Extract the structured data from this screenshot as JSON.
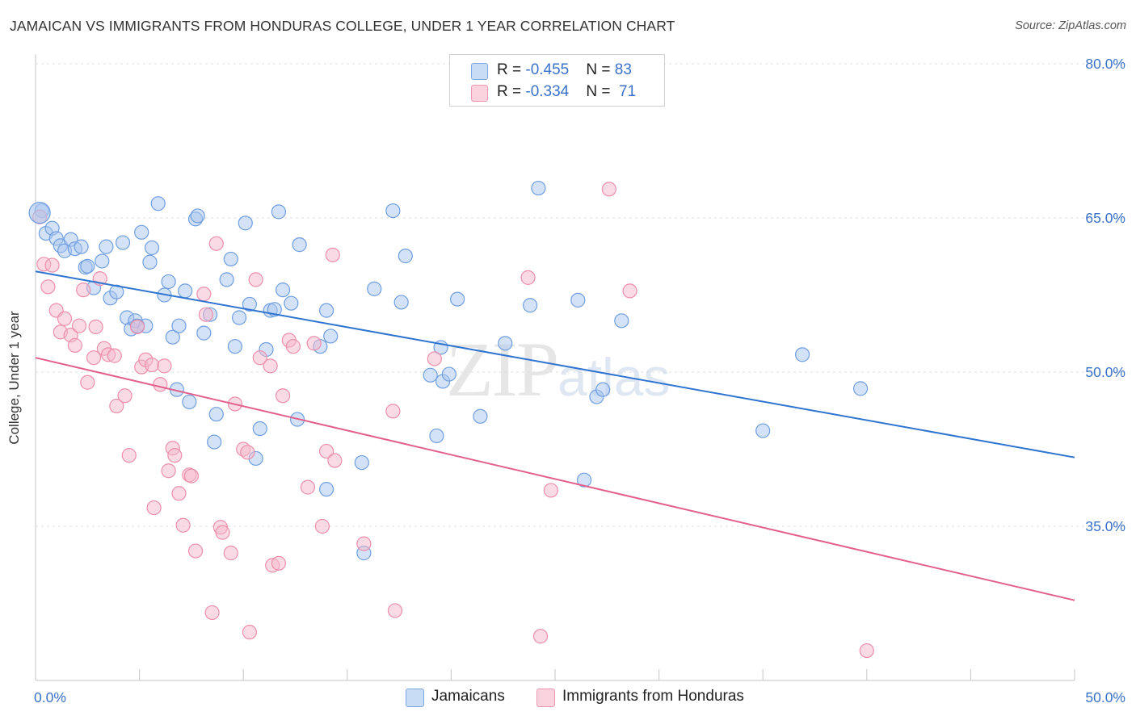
{
  "header": {
    "title": "JAMAICAN VS IMMIGRANTS FROM HONDURAS COLLEGE, UNDER 1 YEAR CORRELATION CHART",
    "source": "Source: ZipAtlas.com"
  },
  "watermark": {
    "zip": "ZIP",
    "atlas": "atlas"
  },
  "legend": {
    "rows": [
      {
        "r_label": "R = ",
        "r_value": "-0.455",
        "n_label": "N = ",
        "n_value": "83",
        "color": "#a9c6ef"
      },
      {
        "r_label": "R = ",
        "r_value": "-0.334",
        "n_label": "N = ",
        "n_value": "71",
        "color": "#f5b8cb"
      }
    ]
  },
  "bottom_legend": [
    {
      "label": "Jamaicans",
      "color": "#a9c6ef"
    },
    {
      "label": "Immigrants from Honduras",
      "color": "#f5b8cb"
    }
  ],
  "chart_data": {
    "type": "scatter",
    "title": "JAMAICAN VS IMMIGRANTS FROM HONDURAS COLLEGE, UNDER 1 YEAR CORRELATION CHART",
    "xlabel": "",
    "ylabel": "College, Under 1 year",
    "xlim": [
      0,
      50
    ],
    "ylim": [
      20,
      83
    ],
    "x_tick_labels": [
      "0.0%",
      "50.0%"
    ],
    "y_ticks": [
      35,
      50,
      65,
      80
    ],
    "y_tick_labels": [
      "35.0%",
      "50.0%",
      "65.0%",
      "80.0%"
    ],
    "grid": true,
    "legend_position": "top-center",
    "series": [
      {
        "name": "Jamaicans",
        "color": "#6f9fe0",
        "fill": "#a9c6ef",
        "trend": {
          "x": [
            0,
            50
          ],
          "y": [
            59.8,
            41.7
          ],
          "color": "#2f74d0"
        },
        "points": [
          [
            0.3,
            65.7
          ],
          [
            0.5,
            63.5
          ],
          [
            0.8,
            64
          ],
          [
            1,
            63
          ],
          [
            1.2,
            62.3
          ],
          [
            1.4,
            61.8
          ],
          [
            1.7,
            62.9
          ],
          [
            1.9,
            62
          ],
          [
            2.2,
            62.2
          ],
          [
            2.4,
            60.2
          ],
          [
            2.5,
            60.3
          ],
          [
            2.8,
            58.2
          ],
          [
            3.2,
            60.8
          ],
          [
            3.4,
            62.2
          ],
          [
            3.6,
            57.2
          ],
          [
            3.9,
            57.8
          ],
          [
            4.2,
            62.6
          ],
          [
            4.4,
            55.3
          ],
          [
            4.6,
            54.2
          ],
          [
            4.8,
            55
          ],
          [
            5.1,
            63.6
          ],
          [
            5.3,
            54.5
          ],
          [
            5.5,
            60.7
          ],
          [
            5.6,
            62.1
          ],
          [
            5.9,
            66.4
          ],
          [
            6.2,
            57.5
          ],
          [
            6.4,
            58.8
          ],
          [
            6.6,
            53.4
          ],
          [
            6.9,
            54.5
          ],
          [
            6.8,
            48.3
          ],
          [
            7.2,
            57.9
          ],
          [
            7.4,
            47.1
          ],
          [
            7.7,
            64.9
          ],
          [
            7.8,
            65.2
          ],
          [
            8.1,
            53.8
          ],
          [
            8.4,
            55.6
          ],
          [
            8.6,
            43.2
          ],
          [
            8.7,
            45.9
          ],
          [
            9.2,
            59
          ],
          [
            9.4,
            61
          ],
          [
            9.6,
            52.5
          ],
          [
            9.8,
            55.3
          ],
          [
            10.1,
            64.5
          ],
          [
            10.3,
            56.6
          ],
          [
            10.6,
            41.6
          ],
          [
            10.8,
            44.5
          ],
          [
            11.1,
            52.2
          ],
          [
            11.3,
            56
          ],
          [
            11.5,
            56.1
          ],
          [
            11.7,
            65.6
          ],
          [
            11.9,
            58
          ],
          [
            12.3,
            56.7
          ],
          [
            12.6,
            45.4
          ],
          [
            12.7,
            62.4
          ],
          [
            13.7,
            52.5
          ],
          [
            14,
            38.6
          ],
          [
            14.2,
            53.5
          ],
          [
            14,
            56
          ],
          [
            15.7,
            41.2
          ],
          [
            15.8,
            32.4
          ],
          [
            16.3,
            58.1
          ],
          [
            17.2,
            65.7
          ],
          [
            17.6,
            56.8
          ],
          [
            17.8,
            61.3
          ],
          [
            19,
            49.7
          ],
          [
            19.3,
            43.8
          ],
          [
            19.5,
            52.4
          ],
          [
            19.6,
            49.1
          ],
          [
            19.9,
            49.8
          ],
          [
            20.3,
            57.1
          ],
          [
            21.4,
            45.7
          ],
          [
            22.6,
            52.8
          ],
          [
            23.8,
            56.5
          ],
          [
            24.2,
            67.9
          ],
          [
            26.1,
            57
          ],
          [
            26.4,
            39.5
          ],
          [
            27,
            47.6
          ],
          [
            27.3,
            48.3
          ],
          [
            28.2,
            55
          ],
          [
            36.9,
            51.7
          ],
          [
            35,
            44.3
          ],
          [
            39.7,
            48.4
          ],
          [
            4.9,
            54.5
          ]
        ]
      },
      {
        "name": "Immigrants from Honduras",
        "color": "#ec8fab",
        "fill": "#f5b8cb",
        "trend": {
          "x": [
            0,
            50
          ],
          "y": [
            51.4,
            27.8
          ],
          "color": "#e2608b"
        },
        "points": [
          [
            0.2,
            65.1
          ],
          [
            0.4,
            60.5
          ],
          [
            0.6,
            58.3
          ],
          [
            0.8,
            60.4
          ],
          [
            1,
            56
          ],
          [
            1.2,
            53.9
          ],
          [
            1.4,
            55.2
          ],
          [
            1.7,
            53.6
          ],
          [
            1.9,
            52.6
          ],
          [
            2.1,
            54.5
          ],
          [
            2.3,
            58
          ],
          [
            2.5,
            49
          ],
          [
            2.8,
            51.4
          ],
          [
            2.9,
            54.4
          ],
          [
            3.1,
            59.1
          ],
          [
            3.3,
            52.3
          ],
          [
            3.5,
            51.7
          ],
          [
            3.8,
            51.6
          ],
          [
            3.9,
            46.7
          ],
          [
            4.3,
            47.7
          ],
          [
            4.5,
            41.9
          ],
          [
            4.9,
            54.4
          ],
          [
            5.1,
            50.5
          ],
          [
            5.3,
            51.2
          ],
          [
            5.6,
            50.7
          ],
          [
            5.7,
            36.8
          ],
          [
            6.2,
            50.6
          ],
          [
            6,
            48.8
          ],
          [
            6.4,
            40.4
          ],
          [
            6.6,
            42.6
          ],
          [
            6.7,
            41.9
          ],
          [
            6.9,
            38.2
          ],
          [
            7.1,
            35.1
          ],
          [
            7.4,
            40
          ],
          [
            7.5,
            39.9
          ],
          [
            7.7,
            32.6
          ],
          [
            8.1,
            57.6
          ],
          [
            8.2,
            55.6
          ],
          [
            8.5,
            26.6
          ],
          [
            8.7,
            62.5
          ],
          [
            8.9,
            34.9
          ],
          [
            9,
            34.4
          ],
          [
            9.4,
            32.4
          ],
          [
            9.6,
            46.9
          ],
          [
            10,
            42.5
          ],
          [
            10.2,
            42.2
          ],
          [
            10.3,
            24.7
          ],
          [
            10.6,
            59
          ],
          [
            10.8,
            51.4
          ],
          [
            11.3,
            50.6
          ],
          [
            11.4,
            31.2
          ],
          [
            11.7,
            31.4
          ],
          [
            11.9,
            47.7
          ],
          [
            12.2,
            53.1
          ],
          [
            12.4,
            52.5
          ],
          [
            13.1,
            38.8
          ],
          [
            13.4,
            52.8
          ],
          [
            14,
            42.3
          ],
          [
            14.4,
            41.4
          ],
          [
            13.8,
            35
          ],
          [
            14.3,
            61.4
          ],
          [
            15.8,
            33.3
          ],
          [
            17.2,
            46.2
          ],
          [
            17.3,
            26.8
          ],
          [
            19.2,
            51.3
          ],
          [
            23.7,
            59.2
          ],
          [
            24.8,
            38.5
          ],
          [
            24.3,
            24.3
          ],
          [
            27.6,
            67.8
          ],
          [
            28.6,
            57.9
          ],
          [
            40,
            22.9
          ]
        ]
      }
    ]
  }
}
